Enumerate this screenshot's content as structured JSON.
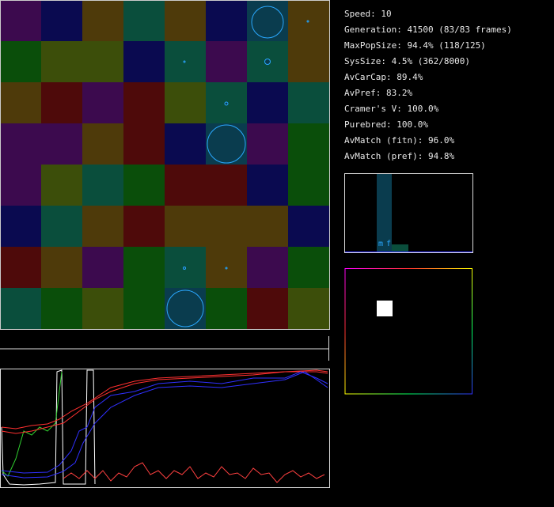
{
  "stats": [
    "Speed: 10",
    "Generation: 41500 (83/83 frames)",
    "MaxPopSize: 94.4% (118/125)",
    "SysSize: 4.5% (362/8000)",
    "AvCarCap: 89.4%",
    "AvPref: 83.2%",
    "Cramer's V: 100.0%",
    "Purebred: 100.0%",
    "AvMatch (fitn): 96.0%",
    "AvMatch (pref): 94.8%"
  ],
  "histogram": {
    "labels": [
      "m",
      "f"
    ]
  }
}
